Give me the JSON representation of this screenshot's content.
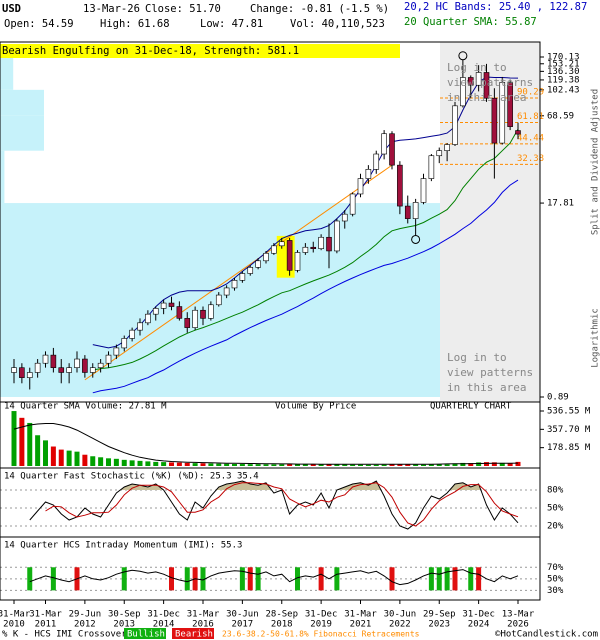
{
  "header": {
    "symbol": "USD",
    "date": "13-Mar-26",
    "close": "Close: 51.70",
    "change": "Change: -0.81 (-1.5 %)",
    "open": "Open: 54.59",
    "high": "High: 61.68",
    "low": "Low: 47.81",
    "volume": "Vol: 40,110,523",
    "bands": "20,2 HC Bands: 25.40 , 122.87",
    "sma": "20 Quarter SMA: 55.87"
  },
  "chart_data": [
    {
      "type": "candlestick",
      "annotation": "Bearish Engulfing on 31-Dec-18, Strength: 581.1",
      "annotation_color": "#ffff00",
      "pattern_quarters": [
        34,
        35
      ],
      "y_label": "Split and Dividend Adjusted",
      "scale_label": "Logarithmic",
      "log_scale": true,
      "ylim": [
        0.89,
        170.13
      ],
      "yticks": [
        170.13,
        153.21,
        {
          "value": 136.3,
          "label": "136.30"
        },
        119.38,
        102.43,
        68.59,
        17.81,
        0.89
      ],
      "up_color": "#ffffff",
      "down_color": "#a0103c",
      "open": [
        1.3,
        1.4,
        1.2,
        1.3,
        1.5,
        1.7,
        1.4,
        1.3,
        1.4,
        1.6,
        1.3,
        1.4,
        1.5,
        1.7,
        1.9,
        2.2,
        2.5,
        2.8,
        3.2,
        3.5,
        3.8,
        3.6,
        3.0,
        2.6,
        3.4,
        3.0,
        3.7,
        4.3,
        4.8,
        5.4,
        6.0,
        6.6,
        7.3,
        8.2,
        9.2,
        10.0,
        6.3,
        8.3,
        9.0,
        8.8,
        10.5,
        8.5,
        13.5,
        15,
        20.5,
        26,
        30,
        38,
        52,
        32,
        17,
        14,
        18,
        26,
        37,
        40,
        44,
        80,
        124,
        110,
        134,
        90,
        45,
        115,
        54.59
      ],
      "high": [
        1.6,
        1.5,
        1.4,
        1.6,
        1.8,
        1.9,
        1.6,
        1.5,
        1.8,
        1.7,
        1.5,
        1.6,
        1.8,
        2.0,
        2.3,
        2.6,
        3.0,
        3.4,
        3.6,
        4.0,
        4.2,
        3.9,
        3.3,
        3.6,
        3.6,
        3.9,
        4.5,
        5.0,
        5.6,
        6.2,
        6.8,
        7.6,
        8.5,
        9.6,
        10.4,
        10.4,
        8.6,
        9.6,
        9.8,
        11.0,
        13,
        14,
        16,
        21,
        28,
        32,
        40,
        55,
        54,
        34,
        20,
        19,
        28,
        38,
        42,
        45,
        85,
        163,
        128,
        150,
        153,
        105,
        125,
        120,
        61.68
      ],
      "low": [
        1.1,
        1.1,
        1.0,
        1.2,
        1.4,
        1.3,
        1.1,
        1.1,
        1.3,
        1.2,
        1.2,
        1.3,
        1.4,
        1.6,
        1.8,
        2.1,
        2.3,
        2.7,
        2.9,
        3.2,
        3.4,
        2.9,
        2.4,
        2.5,
        2.7,
        2.9,
        3.6,
        4.1,
        4.6,
        5.2,
        5.8,
        6.4,
        7.0,
        8.0,
        8.8,
        5.8,
        6.1,
        8.0,
        8.3,
        8.6,
        6.5,
        8.2,
        12,
        14.5,
        19.5,
        24,
        28,
        35,
        30,
        15,
        13,
        10.8,
        17.5,
        25,
        33,
        34,
        43,
        78,
        90,
        100,
        85,
        26,
        44,
        55,
        47.81
      ],
      "close": [
        1.4,
        1.2,
        1.3,
        1.5,
        1.7,
        1.4,
        1.3,
        1.4,
        1.6,
        1.3,
        1.4,
        1.5,
        1.7,
        1.9,
        2.2,
        2.5,
        2.8,
        3.2,
        3.5,
        3.8,
        3.6,
        3.0,
        2.6,
        3.4,
        3.0,
        3.7,
        4.3,
        4.8,
        5.4,
        6.0,
        6.6,
        7.3,
        8.2,
        9.2,
        9.8,
        6.3,
        8.3,
        9.0,
        8.8,
        10.5,
        8.5,
        13.5,
        15,
        20.5,
        26,
        30,
        38,
        52,
        32,
        17,
        14,
        18,
        26,
        37,
        40,
        44,
        80,
        124,
        110,
        134,
        90,
        45,
        115,
        58,
        51.7
      ],
      "sma": {
        "color": "#008000",
        "values": [
          null,
          null,
          null,
          null,
          null,
          null,
          null,
          null,
          null,
          null,
          1.35,
          1.38,
          1.4,
          1.43,
          1.47,
          1.52,
          1.6,
          1.7,
          1.82,
          1.96,
          2.1,
          2.25,
          2.38,
          2.5,
          2.6,
          2.72,
          2.85,
          3.0,
          3.15,
          3.3,
          3.5,
          3.7,
          3.95,
          4.2,
          4.45,
          4.6,
          4.85,
          5.1,
          5.35,
          5.6,
          5.85,
          6.2,
          6.6,
          7.1,
          7.8,
          8.5,
          9.4,
          10.6,
          11.6,
          12.0,
          12.3,
          12.6,
          13.2,
          14.1,
          15.0,
          16.1,
          18.5,
          22.5,
          26.0,
          30.0,
          33.5,
          35.5,
          40.0,
          45.0,
          55.87
        ]
      },
      "upper_band": {
        "color": "#000090",
        "values": [
          null,
          null,
          null,
          null,
          null,
          null,
          null,
          null,
          null,
          null,
          2.0,
          1.95,
          1.9,
          1.95,
          2.1,
          2.4,
          2.7,
          3.1,
          3.6,
          4.0,
          4.3,
          4.5,
          4.6,
          4.6,
          4.6,
          4.6,
          4.8,
          5.1,
          5.6,
          6.2,
          6.8,
          7.5,
          8.3,
          9.3,
          10.3,
          10.8,
          11.2,
          11.6,
          11.8,
          12.0,
          12.6,
          14.0,
          15.8,
          18.5,
          22.0,
          26.0,
          32.0,
          40.0,
          46.0,
          47.0,
          47.5,
          48.0,
          49.0,
          50.0,
          51.0,
          52.5,
          58.0,
          75.0,
          95.0,
          115.0,
          125.0,
          124.0,
          124.0,
          123.0,
          122.87
        ]
      },
      "lower_band": {
        "color": "#0000e0",
        "values": [
          null,
          null,
          null,
          null,
          null,
          null,
          null,
          null,
          null,
          null,
          0.95,
          0.98,
          1.0,
          1.02,
          1.05,
          1.1,
          1.15,
          1.2,
          1.28,
          1.35,
          1.45,
          1.55,
          1.65,
          1.75,
          1.85,
          1.95,
          2.05,
          2.15,
          2.3,
          2.45,
          2.6,
          2.75,
          2.9,
          3.05,
          3.2,
          3.4,
          3.6,
          3.85,
          4.1,
          4.4,
          4.7,
          5.0,
          5.3,
          5.6,
          5.9,
          6.2,
          6.5,
          6.8,
          7.0,
          7.3,
          7.6,
          8.0,
          8.4,
          8.9,
          9.5,
          10.2,
          11.0,
          12.0,
          13.0,
          14.5,
          16.0,
          18.0,
          21.0,
          23.5,
          25.4
        ]
      },
      "trend_line": {
        "x": [
          9,
          48
        ],
        "values": [
          1.16,
          32
        ],
        "color": "#ff8c00"
      },
      "fib_levels": [
        90.29,
        61.81,
        44.44,
        32.38
      ],
      "fib_color": "#ff8c00",
      "volume_by_price": {
        "title": "Volume By Price",
        "bins": [
          0.89,
          17.81,
          40,
          68.59,
          102.43,
          170.13
        ],
        "values": [
          100,
          1,
          10,
          10,
          3
        ],
        "color": "#c6f2fa"
      },
      "circled_highs": [
        57
      ],
      "circled_lows": [
        51
      ],
      "locked_notice": [
        "Log in to",
        "view patterns",
        "in this area"
      ]
    },
    {
      "type": "bar",
      "title": "14 Quarter SMA Volume: 27.81 M",
      "label": "QUARTERLY CHART",
      "ylim": [
        0,
        536.55
      ],
      "yticks": [
        {
          "value": 536.55,
          "label": "536.55 M"
        },
        {
          "value": 357.7,
          "label": "357.70 M"
        },
        {
          "value": 178.85,
          "label": "178.85 M"
        }
      ],
      "up_color": "#00a000",
      "down_color": "#e00000",
      "values": [
        536,
        470,
        420,
        300,
        250,
        190,
        160,
        150,
        140,
        110,
        95,
        85,
        75,
        70,
        60,
        55,
        50,
        45,
        40,
        38,
        35,
        33,
        30,
        28,
        27,
        25,
        23,
        22,
        20,
        19,
        18,
        18,
        17,
        16,
        16,
        20,
        18,
        16,
        15,
        14,
        18,
        16,
        14,
        13,
        13,
        12,
        12,
        13,
        15,
        16,
        15,
        14,
        13,
        14,
        15,
        16,
        25,
        30,
        28,
        35,
        38,
        36,
        30,
        28,
        40.11
      ],
      "sma": {
        "color": "#000000",
        "values": [
          360,
          380,
          400,
          410,
          415,
          415,
          400,
          380,
          350,
          310,
          270,
          230,
          190,
          160,
          130,
          105,
          85,
          70,
          58,
          50,
          44,
          40,
          37,
          35,
          33,
          31,
          29,
          27,
          26,
          25,
          24,
          23,
          22,
          21,
          20,
          20,
          19,
          19,
          19,
          18,
          18,
          18,
          17,
          17,
          17,
          17,
          17,
          17,
          17,
          17,
          17,
          17,
          17,
          18,
          19,
          20,
          21,
          22,
          23,
          24,
          25,
          26,
          27,
          27.5,
          27.81
        ]
      }
    },
    {
      "type": "line",
      "title": "14 Quarter Fast Stochastic (%K) (%D): 25.3  35.4",
      "ylim": [
        0,
        100
      ],
      "yticks": [
        {
          "value": 80,
          "label": "80%"
        },
        {
          "value": 50,
          "label": "50%"
        },
        {
          "value": 20,
          "label": "20%"
        }
      ],
      "fill_color": "#c8bf98",
      "series": [
        {
          "color": "#000000",
          "values": [
            null,
            null,
            30,
            45,
            60,
            55,
            40,
            30,
            35,
            50,
            40,
            35,
            55,
            75,
            85,
            90,
            88,
            85,
            90,
            80,
            60,
            40,
            30,
            60,
            50,
            70,
            85,
            90,
            92,
            95,
            90,
            88,
            92,
            75,
            80,
            40,
            55,
            60,
            55,
            75,
            50,
            80,
            85,
            90,
            92,
            88,
            95,
            70,
            40,
            20,
            15,
            25,
            50,
            70,
            65,
            75,
            90,
            92,
            85,
            90,
            55,
            30,
            50,
            40,
            25.3
          ]
        },
        {
          "color": "#c00000",
          "values": [
            null,
            null,
            null,
            null,
            45,
            53,
            52,
            42,
            35,
            38,
            42,
            42,
            43,
            55,
            72,
            83,
            88,
            88,
            88,
            85,
            77,
            60,
            43,
            43,
            47,
            60,
            68,
            82,
            89,
            92,
            92,
            91,
            90,
            85,
            82,
            65,
            58,
            52,
            57,
            63,
            60,
            68,
            72,
            85,
            89,
            90,
            92,
            84,
            68,
            43,
            25,
            20,
            30,
            48,
            62,
            70,
            77,
            86,
            89,
            89,
            77,
            58,
            45,
            40,
            35.4
          ]
        }
      ]
    },
    {
      "type": "line",
      "title": "14 Quarter HCS Intraday Momentum (IMI): 55.3",
      "ylim": [
        15,
        100
      ],
      "yticks": [
        {
          "value": 70,
          "label": "70%"
        },
        {
          "value": 50,
          "label": "50%"
        },
        {
          "value": 30,
          "label": "30%"
        }
      ],
      "series": [
        {
          "color": "#000000",
          "values": [
            null,
            null,
            45,
            50,
            55,
            52,
            48,
            45,
            50,
            55,
            50,
            48,
            52,
            58,
            62,
            65,
            63,
            60,
            62,
            58,
            52,
            48,
            45,
            50,
            48,
            55,
            60,
            62,
            64,
            63,
            60,
            58,
            62,
            55,
            58,
            45,
            52,
            55,
            53,
            58,
            50,
            58,
            60,
            62,
            64,
            60,
            63,
            55,
            45,
            40,
            42,
            48,
            55,
            60,
            58,
            62,
            64,
            66,
            60,
            58,
            50,
            45,
            55,
            50,
            55.3
          ]
        }
      ],
      "bullish_quarters": [
        2,
        5,
        14,
        22,
        24,
        29,
        31,
        36,
        41,
        53,
        54,
        55,
        58
      ],
      "bearish_quarters": [
        8,
        20,
        23,
        30,
        39,
        48,
        56,
        59
      ],
      "bullish_color": "#10b010",
      "bearish_color": "#e01010",
      "xticks": [
        {
          "value": 0,
          "label": [
            "31-Mar",
            "2010"
          ]
        },
        {
          "value": 4,
          "label": [
            "31-Mar",
            "2011"
          ]
        },
        {
          "value": 9,
          "label": [
            "29-Jun",
            "2012"
          ]
        },
        {
          "value": 14,
          "label": [
            "30-Sep",
            "2013"
          ]
        },
        {
          "value": 19,
          "label": [
            "31-Dec",
            "2014"
          ]
        },
        {
          "value": 24,
          "label": [
            "31-Mar",
            "2016"
          ]
        },
        {
          "value": 29,
          "label": [
            "30-Jun",
            "2017"
          ]
        },
        {
          "value": 34,
          "label": [
            "28-Sep",
            "2018"
          ]
        },
        {
          "value": 39,
          "label": [
            "31-Dec",
            "2019"
          ]
        },
        {
          "value": 44,
          "label": [
            "31-Mar",
            "2021"
          ]
        },
        {
          "value": 49,
          "label": [
            "30-Jun",
            "2022"
          ]
        },
        {
          "value": 54,
          "label": [
            "29-Sep",
            "2023"
          ]
        },
        {
          "value": 59,
          "label": [
            "31-Dec",
            "2024"
          ]
        },
        {
          "value": 64,
          "label": [
            "13-Mar",
            "2026"
          ]
        }
      ]
    }
  ],
  "footer": {
    "crossover": "% K - HCS IMI Crossover:",
    "bullish": "Bullish",
    "bearish": "Bearish",
    "fibonacci": "23.6-38.2-50-61.8% Fibonacci Retracements",
    "copyright": "©HotCandlestick.com"
  }
}
